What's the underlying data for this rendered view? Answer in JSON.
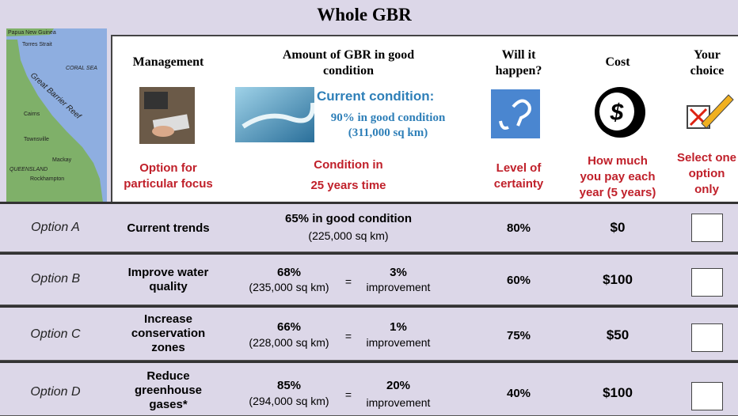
{
  "header": {
    "title": "Whole GBR"
  },
  "map": {
    "labels": [
      "Papua New Guinea",
      "Torres Strait",
      "CORAL SEA",
      "Great Barrier Reef",
      "Cairns",
      "Townsville",
      "Mackay",
      "QUEENSLAND",
      "Rockhampton"
    ]
  },
  "columns": [
    {
      "title": [
        "Management"
      ],
      "subtitle": [
        "Option for",
        "particular focus"
      ]
    },
    {
      "title": [
        "Amount of GBR in good",
        "condition"
      ],
      "subtitle": [
        "Condition in",
        "25 years time"
      ]
    },
    {
      "title": [
        "Will it",
        "happen?"
      ],
      "subtitle": [
        "Level of",
        "certainty"
      ]
    },
    {
      "title": [
        "Cost"
      ],
      "subtitle": [
        "How much",
        "you pay each",
        "year (5 years)"
      ]
    },
    {
      "title": [
        "Your",
        "choice"
      ],
      "subtitle": [
        "Select one",
        "option",
        "only"
      ]
    }
  ],
  "current_condition": {
    "title": "Current condition:",
    "lines": [
      "90% in good condition",
      "(311,000 sq km)"
    ]
  },
  "cost_icon": "$",
  "rows": [
    {
      "option": "Option A",
      "management": [
        "Current trends"
      ],
      "condition": "65% in good condition",
      "area": "(225,000 sq km)",
      "certainty": "80%",
      "cost": "$0"
    },
    {
      "option": "Option B",
      "management": [
        "Improve water",
        "quality"
      ],
      "condition": "68%",
      "area": "(235,000 sq km)",
      "equals": "=",
      "change": "3%",
      "change_label": "improvement",
      "certainty": "60%",
      "cost": "$100"
    },
    {
      "option": "Option C",
      "management": [
        "Increase",
        "conservation",
        "zones"
      ],
      "condition": "66%",
      "area": "(228,000 sq km)",
      "equals": "=",
      "change": "1%",
      "change_label": "improvement",
      "certainty": "75%",
      "cost": "$50"
    },
    {
      "option": "Option D",
      "management": [
        "Reduce",
        "greenhouse",
        "gases*"
      ],
      "condition": "85%",
      "area": "(294,000 sq km)",
      "equals": "=",
      "change": "20%",
      "change_label": "improvement",
      "certainty": "40%",
      "cost": "$100"
    }
  ]
}
